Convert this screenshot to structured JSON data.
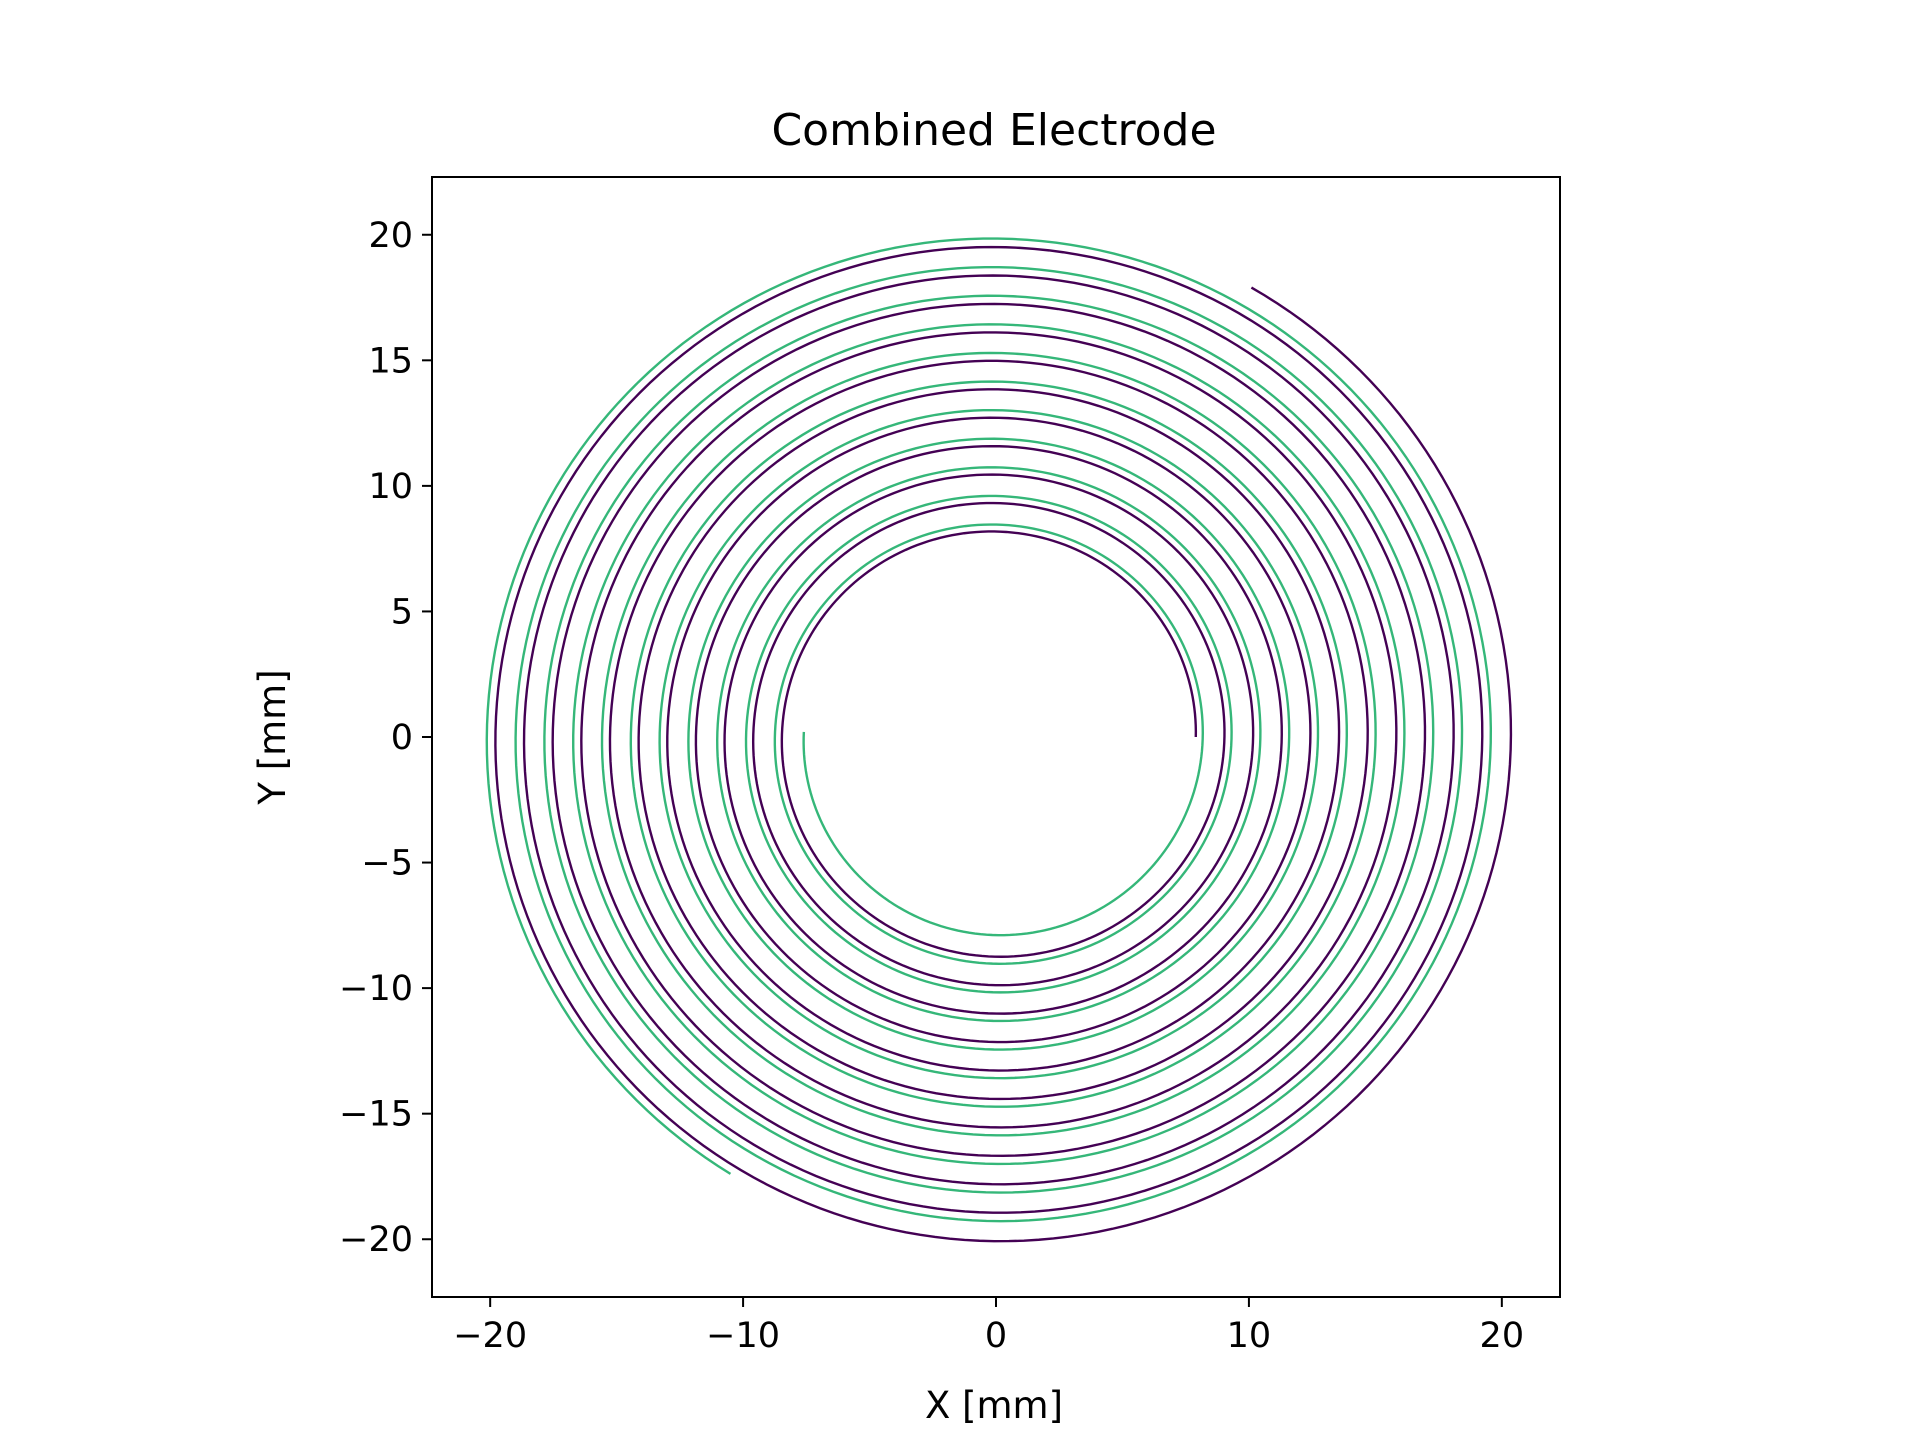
{
  "chart_data": {
    "type": "line",
    "title": "Combined Electrode",
    "xlabel": "X [mm]",
    "ylabel": "Y [mm]",
    "xlim": [
      -22.3,
      22.3
    ],
    "ylim": [
      -22.3,
      22.3
    ],
    "xticks": [
      -20,
      -10,
      0,
      10,
      20
    ],
    "yticks": [
      -20,
      -15,
      -10,
      -5,
      0,
      5,
      10,
      15,
      20
    ],
    "xtick_labels": [
      "−20",
      "−10",
      "0",
      "10",
      "20"
    ],
    "ytick_labels": [
      "−20",
      "−15",
      "−10",
      "−5",
      "0",
      "5",
      "10",
      "15",
      "20"
    ],
    "grid": false,
    "legend": false,
    "series": [
      {
        "color": "#440154",
        "kind": "archimedean-spiral",
        "center": [
          0,
          0
        ],
        "start_point": [
          7.9,
          0.0
        ],
        "end_point": [
          10.1,
          17.9
        ],
        "start_radius": 7.9,
        "end_radius": 20.55,
        "radial_pitch_per_turn": 1.1,
        "direction": "counterclockwise"
      },
      {
        "color": "#35b779",
        "kind": "archimedean-spiral",
        "center": [
          0,
          0
        ],
        "start_point": [
          -7.6,
          0.2
        ],
        "end_point": [
          -10.5,
          -17.4
        ],
        "start_radius": 7.6,
        "end_radius": 20.32,
        "radial_pitch_per_turn": 1.1,
        "direction": "counterclockwise"
      }
    ]
  }
}
